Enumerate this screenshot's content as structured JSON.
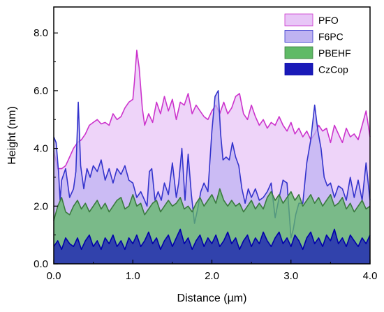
{
  "chart_data": {
    "type": "area",
    "xlabel": "Distance (µm)",
    "ylabel": "Height (nm)",
    "xlim": [
      0,
      4.0
    ],
    "ylim": [
      0,
      8.9
    ],
    "xticks": [
      "0.0",
      "1.0",
      "2.0",
      "3.0",
      "4.0"
    ],
    "yticks": [
      "0.0",
      "2.0",
      "4.0",
      "6.0",
      "8.0"
    ],
    "grid": false,
    "legend_position": "top-right",
    "series": [
      {
        "name": "PFO",
        "fill": "#e8c6f7",
        "stroke": "#cc33cc",
        "x": [
          0.0,
          0.05,
          0.1,
          0.15,
          0.2,
          0.25,
          0.3,
          0.35,
          0.4,
          0.45,
          0.5,
          0.55,
          0.6,
          0.65,
          0.7,
          0.75,
          0.8,
          0.85,
          0.9,
          0.95,
          1.0,
          1.02,
          1.05,
          1.08,
          1.12,
          1.15,
          1.2,
          1.25,
          1.3,
          1.35,
          1.4,
          1.45,
          1.5,
          1.55,
          1.6,
          1.65,
          1.7,
          1.75,
          1.8,
          1.85,
          1.9,
          1.95,
          2.0,
          2.05,
          2.1,
          2.15,
          2.2,
          2.25,
          2.3,
          2.35,
          2.4,
          2.45,
          2.5,
          2.55,
          2.6,
          2.65,
          2.7,
          2.75,
          2.8,
          2.85,
          2.9,
          2.95,
          3.0,
          3.05,
          3.1,
          3.15,
          3.2,
          3.25,
          3.3,
          3.35,
          3.4,
          3.45,
          3.5,
          3.55,
          3.6,
          3.65,
          3.7,
          3.75,
          3.8,
          3.85,
          3.9,
          3.95,
          4.0
        ],
        "values": [
          3.9,
          3.3,
          3.3,
          3.4,
          3.7,
          4.0,
          4.2,
          4.3,
          4.5,
          4.8,
          4.9,
          5.0,
          4.85,
          4.9,
          4.8,
          5.2,
          5.0,
          5.1,
          5.4,
          5.6,
          5.7,
          6.3,
          7.4,
          6.8,
          5.4,
          4.8,
          5.2,
          4.9,
          5.6,
          5.2,
          5.8,
          5.3,
          5.7,
          5.0,
          5.6,
          5.5,
          5.9,
          5.2,
          5.5,
          5.3,
          5.1,
          5.0,
          5.3,
          5.5,
          5.2,
          5.6,
          5.2,
          5.4,
          5.8,
          5.9,
          5.2,
          5.0,
          5.5,
          5.1,
          4.8,
          5.0,
          4.7,
          4.9,
          4.8,
          5.1,
          4.8,
          4.6,
          4.9,
          4.5,
          4.7,
          4.4,
          4.6,
          4.3,
          4.5,
          4.8,
          4.6,
          4.7,
          4.2,
          4.8,
          4.5,
          4.2,
          4.7,
          4.4,
          4.5,
          4.3,
          4.8,
          5.3,
          4.4
        ]
      },
      {
        "name": "F6PC",
        "fill": "#bfb3f1",
        "stroke": "#3333cc",
        "x": [
          0.0,
          0.03,
          0.06,
          0.08,
          0.1,
          0.15,
          0.2,
          0.25,
          0.28,
          0.31,
          0.34,
          0.38,
          0.42,
          0.46,
          0.5,
          0.55,
          0.6,
          0.65,
          0.7,
          0.75,
          0.8,
          0.85,
          0.9,
          0.95,
          1.0,
          1.05,
          1.1,
          1.15,
          1.18,
          1.21,
          1.24,
          1.28,
          1.32,
          1.36,
          1.4,
          1.45,
          1.5,
          1.55,
          1.58,
          1.62,
          1.66,
          1.7,
          1.74,
          1.78,
          1.82,
          1.86,
          1.9,
          1.95,
          2.0,
          2.04,
          2.08,
          2.11,
          2.14,
          2.18,
          2.22,
          2.26,
          2.3,
          2.34,
          2.38,
          2.42,
          2.46,
          2.5,
          2.55,
          2.6,
          2.65,
          2.7,
          2.75,
          2.8,
          2.85,
          2.9,
          2.95,
          3.0,
          3.03,
          3.06,
          3.1,
          3.15,
          3.2,
          3.25,
          3.3,
          3.34,
          3.38,
          3.42,
          3.46,
          3.5,
          3.55,
          3.6,
          3.65,
          3.7,
          3.75,
          3.8,
          3.85,
          3.9,
          3.95,
          4.0
        ],
        "values": [
          4.4,
          4.2,
          3.2,
          2.2,
          2.9,
          3.3,
          2.3,
          2.6,
          3.2,
          5.6,
          3.4,
          2.6,
          3.3,
          3.0,
          3.4,
          3.2,
          3.6,
          2.9,
          3.3,
          2.8,
          3.3,
          3.1,
          3.4,
          2.9,
          2.8,
          2.3,
          2.5,
          2.2,
          2.0,
          3.2,
          3.3,
          2.2,
          2.5,
          2.2,
          2.8,
          2.4,
          3.5,
          2.3,
          2.8,
          4.0,
          2.2,
          3.8,
          2.4,
          1.4,
          1.9,
          2.5,
          2.8,
          2.5,
          4.6,
          5.8,
          6.0,
          4.5,
          3.6,
          3.7,
          3.6,
          4.2,
          3.7,
          3.4,
          2.6,
          2.1,
          2.6,
          2.3,
          2.6,
          2.2,
          2.3,
          2.5,
          2.8,
          1.6,
          2.3,
          2.9,
          2.8,
          0.9,
          1.2,
          1.7,
          2.1,
          2.1,
          3.5,
          4.3,
          5.5,
          4.6,
          4.0,
          3.0,
          2.7,
          2.8,
          2.3,
          2.7,
          2.6,
          2.2,
          3.0,
          2.3,
          2.9,
          2.2,
          3.5,
          2.2
        ]
      },
      {
        "name": "PBEHF",
        "fill": "#5fba66",
        "stroke": "#3a7a3e",
        "x": [
          0.0,
          0.05,
          0.1,
          0.15,
          0.2,
          0.25,
          0.3,
          0.35,
          0.4,
          0.45,
          0.5,
          0.55,
          0.6,
          0.65,
          0.7,
          0.75,
          0.8,
          0.85,
          0.9,
          0.95,
          1.0,
          1.05,
          1.1,
          1.15,
          1.2,
          1.25,
          1.3,
          1.35,
          1.4,
          1.45,
          1.5,
          1.55,
          1.6,
          1.65,
          1.7,
          1.75,
          1.8,
          1.85,
          1.9,
          1.95,
          2.0,
          2.05,
          2.1,
          2.15,
          2.2,
          2.25,
          2.3,
          2.35,
          2.4,
          2.45,
          2.5,
          2.55,
          2.6,
          2.65,
          2.7,
          2.75,
          2.8,
          2.85,
          2.9,
          2.95,
          3.0,
          3.05,
          3.1,
          3.15,
          3.2,
          3.25,
          3.3,
          3.35,
          3.4,
          3.45,
          3.5,
          3.55,
          3.6,
          3.65,
          3.7,
          3.75,
          3.8,
          3.85,
          3.9,
          3.95,
          4.0
        ],
        "values": [
          1.5,
          2.0,
          2.3,
          1.8,
          1.7,
          2.0,
          2.2,
          1.9,
          2.1,
          1.8,
          2.0,
          2.2,
          1.9,
          2.1,
          1.8,
          2.0,
          2.2,
          2.3,
          1.9,
          2.0,
          2.4,
          2.0,
          2.1,
          1.7,
          1.9,
          2.1,
          2.2,
          1.8,
          2.0,
          2.2,
          2.0,
          2.1,
          2.3,
          1.9,
          2.0,
          1.8,
          2.1,
          2.3,
          2.0,
          2.2,
          2.4,
          2.1,
          2.6,
          2.2,
          2.0,
          2.2,
          2.0,
          2.1,
          1.8,
          2.0,
          2.2,
          1.9,
          2.1,
          1.9,
          2.3,
          2.5,
          2.2,
          2.4,
          2.1,
          2.3,
          2.5,
          2.2,
          2.4,
          2.0,
          2.2,
          2.4,
          2.1,
          2.3,
          2.0,
          2.2,
          2.4,
          2.0,
          2.1,
          2.3,
          1.9,
          2.1,
          1.8,
          2.0,
          2.2,
          1.9,
          2.0
        ]
      },
      {
        "name": "CzCop",
        "fill": "#1a1ab8",
        "stroke": "#0000aa",
        "x": [
          0.0,
          0.05,
          0.1,
          0.15,
          0.2,
          0.25,
          0.3,
          0.35,
          0.4,
          0.45,
          0.5,
          0.55,
          0.6,
          0.65,
          0.7,
          0.75,
          0.8,
          0.85,
          0.9,
          0.95,
          1.0,
          1.05,
          1.1,
          1.15,
          1.2,
          1.25,
          1.3,
          1.35,
          1.4,
          1.45,
          1.5,
          1.55,
          1.6,
          1.65,
          1.7,
          1.75,
          1.8,
          1.85,
          1.9,
          1.95,
          2.0,
          2.05,
          2.1,
          2.15,
          2.2,
          2.25,
          2.3,
          2.35,
          2.4,
          2.45,
          2.5,
          2.55,
          2.6,
          2.65,
          2.7,
          2.75,
          2.8,
          2.85,
          2.9,
          2.95,
          3.0,
          3.05,
          3.1,
          3.15,
          3.2,
          3.25,
          3.3,
          3.35,
          3.4,
          3.45,
          3.5,
          3.55,
          3.6,
          3.65,
          3.7,
          3.75,
          3.8,
          3.85,
          3.9,
          3.95,
          4.0
        ],
        "values": [
          0.6,
          0.8,
          0.5,
          0.9,
          0.7,
          0.6,
          0.9,
          0.5,
          0.8,
          1.0,
          0.6,
          0.8,
          0.5,
          0.9,
          0.7,
          1.0,
          0.6,
          0.8,
          0.5,
          0.9,
          0.7,
          1.0,
          0.6,
          0.8,
          1.1,
          0.7,
          0.9,
          0.5,
          0.8,
          1.0,
          0.6,
          0.9,
          1.2,
          0.7,
          0.9,
          0.5,
          0.8,
          1.0,
          0.6,
          0.9,
          0.7,
          1.0,
          0.6,
          0.8,
          1.1,
          0.7,
          0.9,
          0.5,
          0.8,
          1.0,
          0.6,
          0.9,
          0.7,
          1.1,
          0.8,
          0.6,
          0.9,
          1.1,
          0.7,
          0.9,
          0.6,
          1.0,
          0.8,
          0.5,
          0.9,
          1.1,
          0.7,
          0.9,
          0.6,
          1.0,
          0.8,
          1.2,
          0.7,
          0.9,
          0.6,
          1.0,
          0.8,
          0.6,
          0.9,
          0.7,
          1.0
        ]
      }
    ]
  }
}
